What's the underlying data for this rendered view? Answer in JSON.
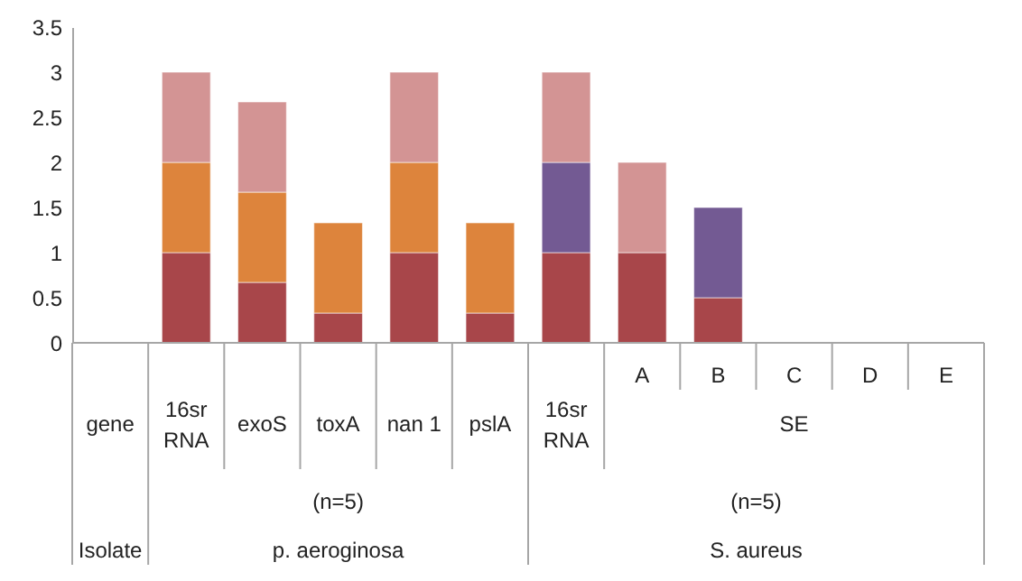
{
  "chart_data": {
    "type": "bar",
    "stacked": true,
    "categories": [
      "gene",
      "16sr RNA",
      "exoS",
      "toxA",
      "nan 1",
      "pslA",
      "16sr RNA",
      "A",
      "B",
      "C",
      "D",
      "E"
    ],
    "series": [
      {
        "color": "#a8464a",
        "values": [
          null,
          1,
          0.67,
          0.33,
          1,
          0.33,
          1,
          1,
          0.5,
          null,
          null,
          null
        ]
      },
      {
        "color": "#dd843c",
        "values": [
          null,
          1,
          1,
          1,
          1,
          1,
          null,
          null,
          null,
          null,
          null,
          null
        ]
      },
      {
        "color": "#735a93",
        "values": [
          null,
          null,
          null,
          null,
          null,
          null,
          1,
          null,
          1,
          null,
          null,
          null
        ]
      },
      {
        "color": "#d39494",
        "values": [
          null,
          1,
          1,
          null,
          1,
          null,
          1,
          1,
          null,
          null,
          null,
          null
        ]
      }
    ],
    "ylim": [
      0,
      3.5
    ],
    "yticks": [
      0,
      0.5,
      1,
      1.5,
      2,
      2.5,
      3,
      3.5
    ],
    "annotations": [
      "SE",
      "(n=5)",
      "(n=5)",
      "Isolate",
      "p. aeroginosa",
      "S. aureus"
    ]
  }
}
